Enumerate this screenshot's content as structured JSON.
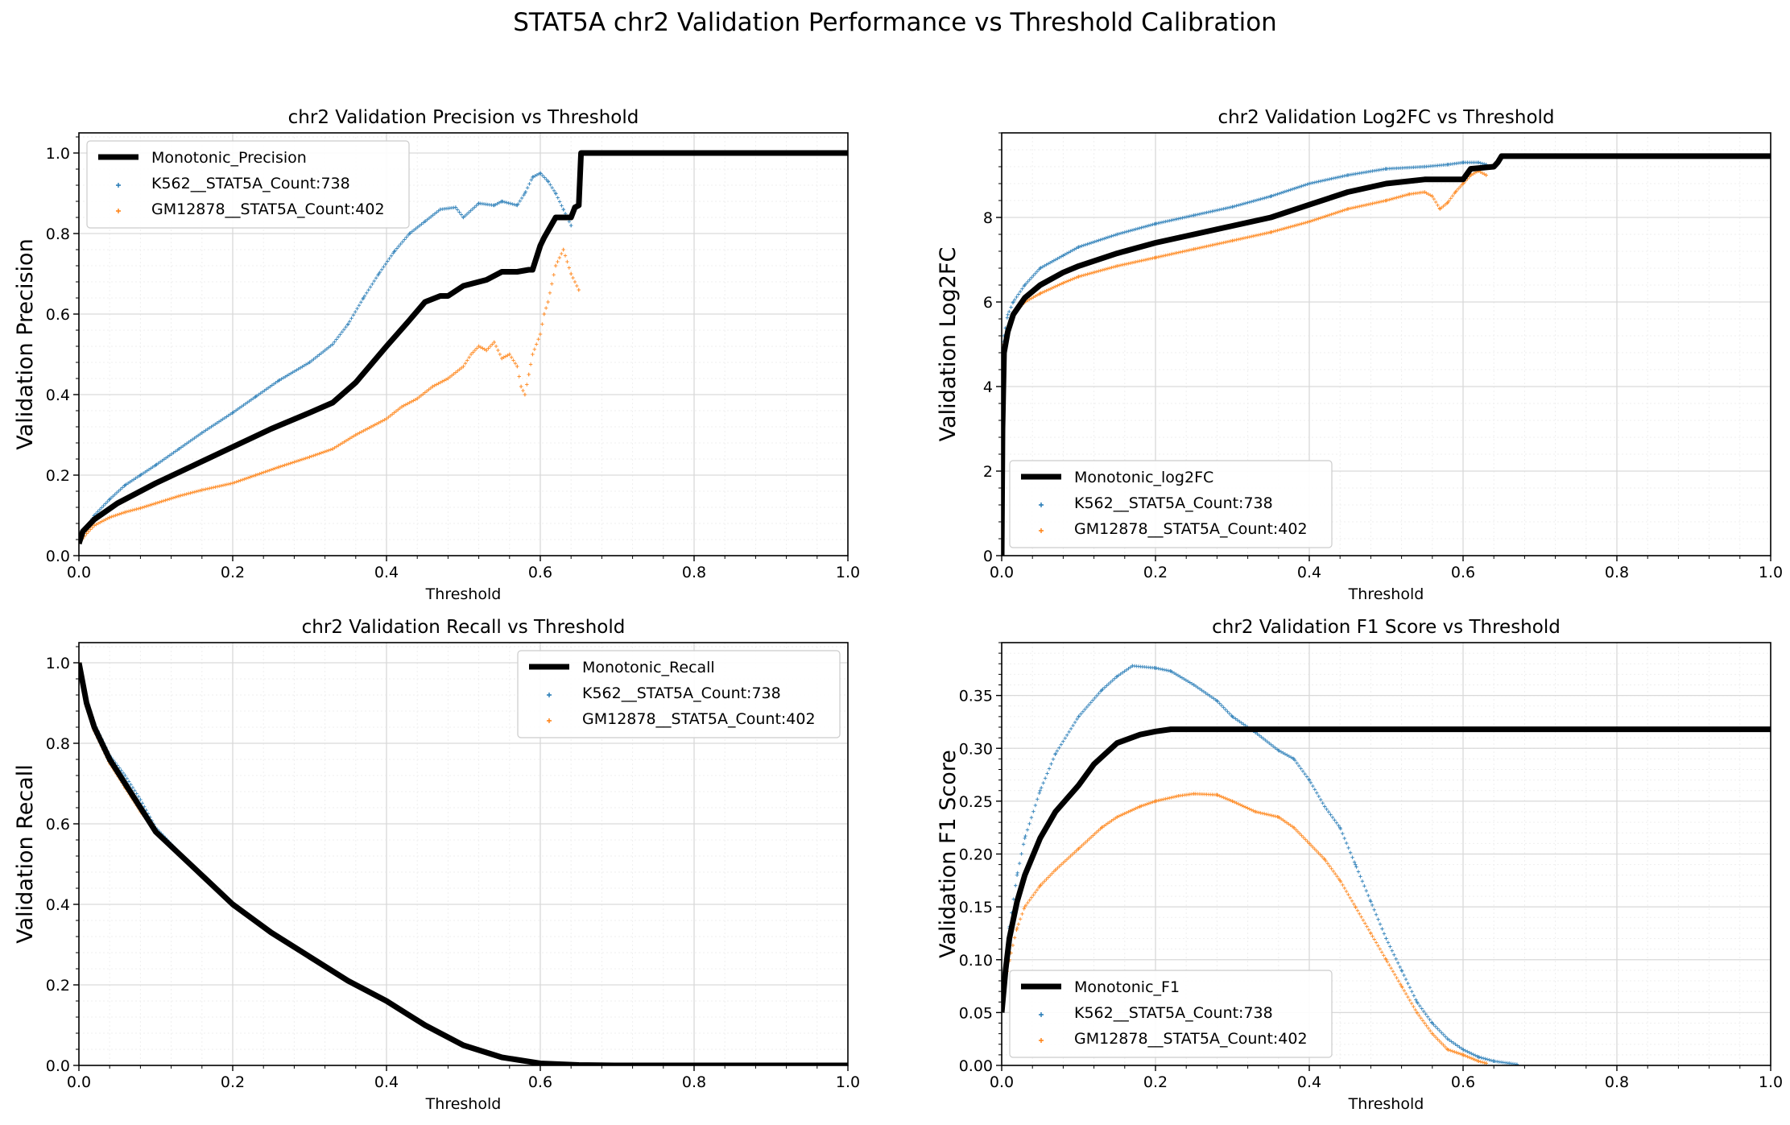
{
  "figure": {
    "suptitle": "STAT5A chr2 Validation Performance vs Threshold Calibration"
  },
  "colors": {
    "k562": "#1f77b4",
    "gm12878": "#ff7f0e",
    "mono": "#000000",
    "grid": "#d9d9d9"
  },
  "chart_data": [
    {
      "id": "precision",
      "type": "scatter",
      "title": "chr2 Validation Precision vs Threshold",
      "xlabel": "Threshold",
      "ylabel": "Validation Precision",
      "xlim": [
        0,
        1
      ],
      "ylim": [
        0,
        1.05
      ],
      "xticks": [
        0,
        0.2,
        0.4,
        0.6,
        0.8,
        1.0
      ],
      "xtick_labels": [
        "0.0",
        "0.2",
        "0.4",
        "0.6",
        "0.8",
        "1.0"
      ],
      "yticks": [
        0,
        0.2,
        0.4,
        0.6,
        0.8,
        1.0
      ],
      "ytick_labels": [
        "0.0",
        "0.2",
        "0.4",
        "0.6",
        "0.8",
        "1.0"
      ],
      "grid": true,
      "legend": "upper-left",
      "series": [
        {
          "name": "Monotonic_Precision",
          "style": "line",
          "x": [
            0,
            0.005,
            0.02,
            0.05,
            0.1,
            0.15,
            0.2,
            0.25,
            0.3,
            0.33,
            0.36,
            0.4,
            0.43,
            0.45,
            0.47,
            0.48,
            0.5,
            0.53,
            0.55,
            0.57,
            0.585,
            0.59,
            0.6,
            0.605,
            0.62,
            0.64,
            0.645,
            0.65,
            0.653,
            0.66,
            0.7,
            0.8,
            0.9,
            1.0
          ],
          "y": [
            0.03,
            0.06,
            0.09,
            0.13,
            0.18,
            0.225,
            0.27,
            0.315,
            0.355,
            0.38,
            0.43,
            0.52,
            0.585,
            0.63,
            0.645,
            0.645,
            0.67,
            0.685,
            0.705,
            0.705,
            0.71,
            0.71,
            0.77,
            0.79,
            0.84,
            0.84,
            0.865,
            0.87,
            1.0,
            1.0,
            1.0,
            1.0,
            1.0,
            1.0
          ]
        },
        {
          "name": "K562__STAT5A_Count:738",
          "style": "points",
          "x": [
            0,
            0.01,
            0.02,
            0.04,
            0.06,
            0.08,
            0.1,
            0.13,
            0.16,
            0.2,
            0.23,
            0.26,
            0.3,
            0.33,
            0.35,
            0.37,
            0.39,
            0.41,
            0.43,
            0.45,
            0.47,
            0.49,
            0.5,
            0.52,
            0.54,
            0.55,
            0.57,
            0.58,
            0.59,
            0.6,
            0.61,
            0.62,
            0.63,
            0.64
          ],
          "y": [
            0.03,
            0.07,
            0.1,
            0.14,
            0.175,
            0.2,
            0.225,
            0.265,
            0.305,
            0.355,
            0.395,
            0.435,
            0.48,
            0.525,
            0.575,
            0.64,
            0.7,
            0.755,
            0.8,
            0.83,
            0.86,
            0.865,
            0.84,
            0.875,
            0.87,
            0.88,
            0.87,
            0.9,
            0.94,
            0.95,
            0.93,
            0.9,
            0.86,
            0.82
          ]
        },
        {
          "name": "GM12878__STAT5A_Count:402",
          "style": "points",
          "x": [
            0,
            0.01,
            0.02,
            0.04,
            0.06,
            0.08,
            0.1,
            0.13,
            0.16,
            0.2,
            0.23,
            0.26,
            0.3,
            0.33,
            0.36,
            0.38,
            0.4,
            0.42,
            0.44,
            0.46,
            0.48,
            0.5,
            0.51,
            0.52,
            0.53,
            0.54,
            0.55,
            0.56,
            0.57,
            0.575,
            0.58,
            0.585,
            0.59,
            0.6,
            0.605,
            0.61,
            0.62,
            0.63,
            0.64,
            0.65
          ],
          "y": [
            0.03,
            0.055,
            0.075,
            0.095,
            0.108,
            0.118,
            0.13,
            0.148,
            0.163,
            0.18,
            0.2,
            0.22,
            0.245,
            0.265,
            0.3,
            0.32,
            0.34,
            0.37,
            0.39,
            0.42,
            0.44,
            0.47,
            0.5,
            0.52,
            0.51,
            0.53,
            0.49,
            0.5,
            0.47,
            0.42,
            0.4,
            0.45,
            0.5,
            0.55,
            0.6,
            0.63,
            0.72,
            0.76,
            0.7,
            0.66
          ]
        }
      ]
    },
    {
      "id": "log2fc",
      "type": "scatter",
      "title": "chr2 Validation Log2FC vs Threshold",
      "xlabel": "Threshold",
      "ylabel": "Validation Log2FC",
      "xlim": [
        0,
        1
      ],
      "ylim": [
        0,
        10
      ],
      "xticks": [
        0,
        0.2,
        0.4,
        0.6,
        0.8,
        1.0
      ],
      "xtick_labels": [
        "0.0",
        "0.2",
        "0.4",
        "0.6",
        "0.8",
        "1.0"
      ],
      "yticks": [
        0,
        2,
        4,
        6,
        8
      ],
      "ytick_labels": [
        "0",
        "2",
        "4",
        "6",
        "8"
      ],
      "grid": true,
      "legend": "lower-left",
      "series": [
        {
          "name": "Monotonic_log2FC",
          "style": "line",
          "x": [
            0,
            0.001,
            0.003,
            0.008,
            0.015,
            0.03,
            0.05,
            0.08,
            0.1,
            0.15,
            0.2,
            0.25,
            0.3,
            0.35,
            0.4,
            0.45,
            0.5,
            0.55,
            0.59,
            0.6,
            0.61,
            0.64,
            0.645,
            0.65,
            0.655,
            0.66,
            0.7,
            0.8,
            0.9,
            1.0
          ],
          "y": [
            0,
            3.0,
            4.8,
            5.3,
            5.7,
            6.1,
            6.4,
            6.7,
            6.85,
            7.15,
            7.4,
            7.6,
            7.8,
            8.0,
            8.3,
            8.6,
            8.8,
            8.9,
            8.9,
            8.9,
            9.15,
            9.2,
            9.3,
            9.45,
            9.45,
            9.45,
            9.45,
            9.45,
            9.45,
            9.45
          ]
        },
        {
          "name": "K562__STAT5A_Count:738",
          "style": "points",
          "x": [
            0,
            0.003,
            0.008,
            0.015,
            0.03,
            0.05,
            0.08,
            0.1,
            0.15,
            0.2,
            0.25,
            0.3,
            0.35,
            0.4,
            0.45,
            0.5,
            0.55,
            0.58,
            0.6,
            0.62,
            0.63
          ],
          "y": [
            4.5,
            5.2,
            5.7,
            6.0,
            6.4,
            6.8,
            7.1,
            7.3,
            7.6,
            7.85,
            8.05,
            8.25,
            8.5,
            8.8,
            9.0,
            9.15,
            9.2,
            9.25,
            9.3,
            9.3,
            9.25
          ]
        },
        {
          "name": "GM12878__STAT5A_Count:402",
          "style": "points",
          "x": [
            0,
            0.003,
            0.008,
            0.015,
            0.03,
            0.05,
            0.08,
            0.1,
            0.15,
            0.2,
            0.25,
            0.3,
            0.35,
            0.4,
            0.45,
            0.5,
            0.53,
            0.55,
            0.56,
            0.57,
            0.58,
            0.59,
            0.6,
            0.61,
            0.62,
            0.63
          ],
          "y": [
            4.3,
            5.0,
            5.4,
            5.7,
            6.0,
            6.2,
            6.45,
            6.6,
            6.85,
            7.05,
            7.25,
            7.45,
            7.65,
            7.9,
            8.2,
            8.4,
            8.55,
            8.6,
            8.5,
            8.2,
            8.35,
            8.6,
            8.8,
            9.0,
            9.1,
            9.0
          ]
        }
      ]
    },
    {
      "id": "recall",
      "type": "scatter",
      "title": "chr2 Validation Recall vs Threshold",
      "xlabel": "Threshold",
      "ylabel": "Validation Recall",
      "xlim": [
        0,
        1
      ],
      "ylim": [
        0,
        1.05
      ],
      "xticks": [
        0,
        0.2,
        0.4,
        0.6,
        0.8,
        1.0
      ],
      "xtick_labels": [
        "0.0",
        "0.2",
        "0.4",
        "0.6",
        "0.8",
        "1.0"
      ],
      "yticks": [
        0,
        0.2,
        0.4,
        0.6,
        0.8,
        1.0
      ],
      "ytick_labels": [
        "0.0",
        "0.2",
        "0.4",
        "0.6",
        "0.8",
        "1.0"
      ],
      "grid": true,
      "legend": "upper-right",
      "series": [
        {
          "name": "Monotonic_Recall",
          "style": "line",
          "x": [
            0,
            0.01,
            0.02,
            0.04,
            0.06,
            0.08,
            0.1,
            0.15,
            0.2,
            0.25,
            0.3,
            0.35,
            0.4,
            0.45,
            0.5,
            0.55,
            0.6,
            0.65,
            0.7,
            0.8,
            0.9,
            1.0
          ],
          "y": [
            1.0,
            0.9,
            0.84,
            0.76,
            0.7,
            0.64,
            0.58,
            0.49,
            0.4,
            0.33,
            0.27,
            0.21,
            0.16,
            0.1,
            0.05,
            0.02,
            0.005,
            0.001,
            0.0,
            0.0,
            0.0,
            0.0
          ]
        },
        {
          "name": "K562__STAT5A_Count:738",
          "style": "points",
          "x": [
            0,
            0.01,
            0.02,
            0.04,
            0.06,
            0.08,
            0.1,
            0.15,
            0.2,
            0.25,
            0.3,
            0.35,
            0.4,
            0.45,
            0.5,
            0.55,
            0.6,
            0.65
          ],
          "y": [
            1.0,
            0.91,
            0.85,
            0.77,
            0.72,
            0.66,
            0.59,
            0.49,
            0.4,
            0.33,
            0.27,
            0.21,
            0.16,
            0.1,
            0.05,
            0.02,
            0.005,
            0.001
          ]
        },
        {
          "name": "GM12878__STAT5A_Count:402",
          "style": "points",
          "x": [
            0,
            0.01,
            0.02,
            0.04,
            0.06,
            0.08,
            0.1,
            0.15,
            0.2,
            0.25,
            0.3,
            0.35,
            0.4,
            0.45,
            0.5,
            0.55,
            0.6,
            0.63
          ],
          "y": [
            1.0,
            0.89,
            0.83,
            0.75,
            0.69,
            0.63,
            0.58,
            0.49,
            0.4,
            0.33,
            0.27,
            0.21,
            0.16,
            0.1,
            0.05,
            0.02,
            0.005,
            0.001
          ]
        }
      ]
    },
    {
      "id": "f1",
      "type": "scatter",
      "title": "chr2 Validation F1 Score vs Threshold",
      "xlabel": "Threshold",
      "ylabel": "Validation F1 Score",
      "xlim": [
        0,
        1
      ],
      "ylim": [
        0,
        0.4
      ],
      "xticks": [
        0,
        0.2,
        0.4,
        0.6,
        0.8,
        1.0
      ],
      "xtick_labels": [
        "0.0",
        "0.2",
        "0.4",
        "0.6",
        "0.8",
        "1.0"
      ],
      "yticks": [
        0,
        0.05,
        0.1,
        0.15,
        0.2,
        0.25,
        0.3,
        0.35
      ],
      "ytick_labels": [
        "0.00",
        "0.05",
        "0.10",
        "0.15",
        "0.20",
        "0.25",
        "0.30",
        "0.35"
      ],
      "grid": true,
      "legend": "lower-left",
      "series": [
        {
          "name": "Monotonic_F1",
          "style": "line",
          "x": [
            0,
            0.005,
            0.01,
            0.02,
            0.03,
            0.05,
            0.07,
            0.1,
            0.12,
            0.15,
            0.18,
            0.2,
            0.22,
            0.25,
            0.3,
            0.4,
            0.5,
            0.6,
            0.7,
            0.8,
            0.9,
            1.0
          ],
          "y": [
            0.05,
            0.09,
            0.12,
            0.155,
            0.18,
            0.215,
            0.24,
            0.265,
            0.285,
            0.305,
            0.313,
            0.316,
            0.318,
            0.318,
            0.318,
            0.318,
            0.318,
            0.318,
            0.318,
            0.318,
            0.318,
            0.318
          ]
        },
        {
          "name": "K562__STAT5A_Count:738",
          "style": "points",
          "x": [
            0,
            0.01,
            0.02,
            0.03,
            0.05,
            0.07,
            0.1,
            0.13,
            0.15,
            0.17,
            0.2,
            0.22,
            0.25,
            0.28,
            0.3,
            0.33,
            0.36,
            0.38,
            0.4,
            0.42,
            0.44,
            0.46,
            0.48,
            0.5,
            0.52,
            0.54,
            0.56,
            0.58,
            0.6,
            0.62,
            0.64,
            0.66,
            0.67
          ],
          "y": [
            0.06,
            0.13,
            0.18,
            0.215,
            0.26,
            0.295,
            0.33,
            0.355,
            0.368,
            0.378,
            0.376,
            0.373,
            0.36,
            0.345,
            0.33,
            0.315,
            0.298,
            0.29,
            0.27,
            0.245,
            0.225,
            0.19,
            0.155,
            0.12,
            0.09,
            0.06,
            0.04,
            0.025,
            0.015,
            0.008,
            0.004,
            0.002,
            0.001
          ]
        },
        {
          "name": "GM12878__STAT5A_Count:402",
          "style": "points",
          "x": [
            0,
            0.01,
            0.02,
            0.03,
            0.05,
            0.07,
            0.1,
            0.13,
            0.15,
            0.18,
            0.2,
            0.23,
            0.25,
            0.28,
            0.3,
            0.33,
            0.36,
            0.38,
            0.4,
            0.42,
            0.44,
            0.46,
            0.48,
            0.5,
            0.52,
            0.54,
            0.56,
            0.58,
            0.6,
            0.62,
            0.63
          ],
          "y": [
            0.06,
            0.1,
            0.13,
            0.15,
            0.17,
            0.185,
            0.205,
            0.225,
            0.235,
            0.245,
            0.25,
            0.255,
            0.257,
            0.256,
            0.25,
            0.24,
            0.235,
            0.225,
            0.21,
            0.195,
            0.175,
            0.15,
            0.125,
            0.1,
            0.075,
            0.05,
            0.03,
            0.015,
            0.01,
            0.004,
            0.002
          ]
        }
      ]
    }
  ]
}
